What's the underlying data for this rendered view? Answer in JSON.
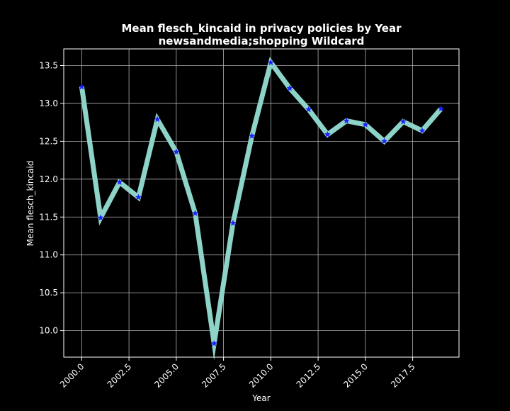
{
  "chart_data": {
    "type": "line",
    "title": "Mean flesch_kincaid in privacy policies by Year",
    "subtitle": "newsandmedia;shopping Wildcard",
    "xlabel": "Year",
    "ylabel": "Mean flesch_kincaid",
    "xlim": [
      1999.05,
      2019.95
    ],
    "ylim": [
      9.65,
      13.72
    ],
    "x_ticks": [
      2000.0,
      2002.5,
      2005.0,
      2007.5,
      2010.0,
      2012.5,
      2015.0,
      2017.5
    ],
    "x_tick_labels": [
      "2000.0",
      "2002.5",
      "2005.0",
      "2007.5",
      "2010.0",
      "2012.5",
      "2015.0",
      "2017.5"
    ],
    "y_ticks": [
      10.0,
      10.5,
      11.0,
      11.5,
      12.0,
      12.5,
      13.0,
      13.5
    ],
    "y_tick_labels": [
      "10.0",
      "10.5",
      "11.0",
      "11.5",
      "12.0",
      "12.5",
      "13.0",
      "13.5"
    ],
    "grid": true,
    "background": "#000000",
    "line_color": "#8dd3c7",
    "marker_color": "#1f1fff",
    "marker": "star",
    "series": [
      {
        "x": [
          2000,
          2001,
          2002,
          2003,
          2004,
          2005,
          2006,
          2007,
          2008,
          2009,
          2010,
          2011,
          2012,
          2013,
          2014,
          2015,
          2016,
          2017,
          2018,
          2019
        ],
        "values": [
          13.22,
          11.49,
          11.96,
          11.76,
          12.79,
          12.36,
          11.55,
          9.83,
          11.42,
          12.57,
          13.54,
          13.2,
          12.92,
          12.59,
          12.77,
          12.72,
          12.5,
          12.76,
          12.64,
          12.93
        ]
      }
    ]
  }
}
